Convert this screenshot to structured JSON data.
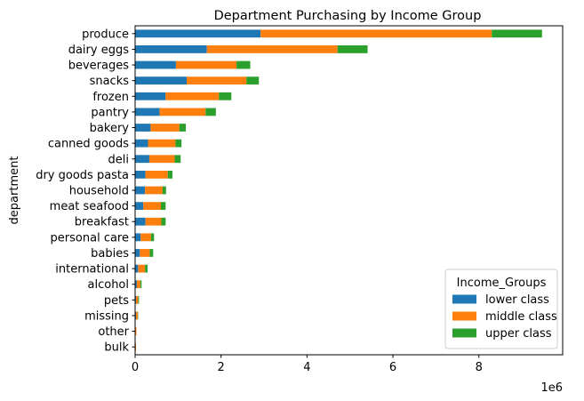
{
  "chart_data": {
    "type": "bar",
    "orientation": "horizontal",
    "stacked": true,
    "title": "Department Purchasing by Income Group",
    "xlabel": "",
    "ylabel": "department",
    "x_scale_label": "1e6",
    "xlim": [
      0,
      9.95
    ],
    "xticks": [
      0,
      2,
      4,
      6,
      8
    ],
    "grid": false,
    "legend_position": "lower-right",
    "legend_title": "Income_Groups",
    "categories": [
      "produce",
      "dairy eggs",
      "beverages",
      "snacks",
      "frozen",
      "pantry",
      "bakery",
      "canned goods",
      "deli",
      "dry goods pasta",
      "household",
      "meat seafood",
      "breakfast",
      "personal care",
      "babies",
      "international",
      "alcohol",
      "pets",
      "missing",
      "other",
      "bulk"
    ],
    "series": [
      {
        "name": "lower class",
        "color": "#1f77b4",
        "values": [
          2.92,
          1.67,
          0.95,
          1.2,
          0.71,
          0.57,
          0.36,
          0.3,
          0.33,
          0.24,
          0.23,
          0.19,
          0.24,
          0.13,
          0.11,
          0.07,
          0.04,
          0.02,
          0.02,
          0.01,
          0.01
        ]
      },
      {
        "name": "middle class",
        "color": "#ff7f0e",
        "values": [
          5.38,
          3.04,
          1.41,
          1.39,
          1.24,
          1.07,
          0.67,
          0.64,
          0.59,
          0.52,
          0.41,
          0.41,
          0.37,
          0.24,
          0.23,
          0.16,
          0.08,
          0.05,
          0.04,
          0.02,
          0.01
        ]
      },
      {
        "name": "upper class",
        "color": "#2ca02c",
        "values": [
          1.17,
          0.7,
          0.32,
          0.29,
          0.29,
          0.24,
          0.15,
          0.14,
          0.14,
          0.11,
          0.08,
          0.11,
          0.1,
          0.07,
          0.08,
          0.06,
          0.03,
          0.02,
          0.01,
          0.0,
          0.0
        ]
      }
    ]
  }
}
